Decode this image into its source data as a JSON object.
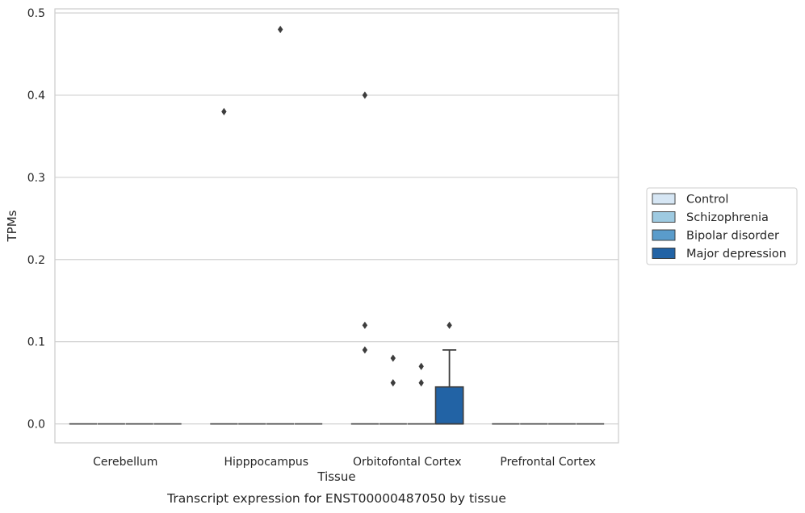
{
  "chart_data": {
    "type": "box",
    "title": "",
    "caption": "Transcript expression for ENST00000487050 by tissue",
    "xlabel": "Tissue",
    "ylabel": "TPMs",
    "ylim": [
      -0.023,
      0.505
    ],
    "yticks": [
      0.0,
      0.1,
      0.2,
      0.3,
      0.4,
      0.5
    ],
    "ytick_labels": [
      "0.0",
      "0.1",
      "0.2",
      "0.3",
      "0.4",
      "0.5"
    ],
    "grid": "horizontal",
    "legend_position": "right",
    "categories": [
      "Cerebellum",
      "Hipppocampus",
      "Orbitofontal Cortex",
      "Prefrontal Cortex"
    ],
    "series": [
      {
        "name": "Control",
        "color": "#d6e6f4",
        "boxes": [
          {
            "q1": 0,
            "median": 0,
            "q3": 0,
            "whisker_low": 0,
            "whisker_high": 0,
            "outliers": []
          },
          {
            "q1": 0,
            "median": 0,
            "q3": 0,
            "whisker_low": 0,
            "whisker_high": 0,
            "outliers": [
              0.38
            ]
          },
          {
            "q1": 0,
            "median": 0,
            "q3": 0,
            "whisker_low": 0,
            "whisker_high": 0,
            "outliers": [
              0.12,
              0.09,
              0.4
            ]
          },
          {
            "q1": 0,
            "median": 0,
            "q3": 0,
            "whisker_low": 0,
            "whisker_high": 0,
            "outliers": []
          }
        ]
      },
      {
        "name": "Schizophrenia",
        "color": "#9ecae1",
        "boxes": [
          {
            "q1": 0,
            "median": 0,
            "q3": 0,
            "whisker_low": 0,
            "whisker_high": 0,
            "outliers": []
          },
          {
            "q1": 0,
            "median": 0,
            "q3": 0,
            "whisker_low": 0,
            "whisker_high": 0,
            "outliers": []
          },
          {
            "q1": 0,
            "median": 0,
            "q3": 0,
            "whisker_low": 0,
            "whisker_high": 0,
            "outliers": [
              0.08,
              0.05
            ]
          },
          {
            "q1": 0,
            "median": 0,
            "q3": 0,
            "whisker_low": 0,
            "whisker_high": 0,
            "outliers": []
          }
        ]
      },
      {
        "name": "Bipolar disorder",
        "color": "#5a9ccb",
        "boxes": [
          {
            "q1": 0,
            "median": 0,
            "q3": 0,
            "whisker_low": 0,
            "whisker_high": 0,
            "outliers": []
          },
          {
            "q1": 0,
            "median": 0,
            "q3": 0,
            "whisker_low": 0,
            "whisker_high": 0,
            "outliers": [
              0.48
            ]
          },
          {
            "q1": 0,
            "median": 0,
            "q3": 0,
            "whisker_low": 0,
            "whisker_high": 0,
            "outliers": [
              0.07,
              0.05
            ]
          },
          {
            "q1": 0,
            "median": 0,
            "q3": 0,
            "whisker_low": 0,
            "whisker_high": 0,
            "outliers": []
          }
        ]
      },
      {
        "name": "Major depression",
        "color": "#2263a5",
        "boxes": [
          {
            "q1": 0,
            "median": 0,
            "q3": 0,
            "whisker_low": 0,
            "whisker_high": 0,
            "outliers": []
          },
          {
            "q1": 0,
            "median": 0,
            "q3": 0,
            "whisker_low": 0,
            "whisker_high": 0,
            "outliers": []
          },
          {
            "q1": 0,
            "median": 0,
            "q3": 0.045,
            "whisker_low": 0,
            "whisker_high": 0.09,
            "outliers": [
              0.12
            ]
          },
          {
            "q1": 0,
            "median": 0,
            "q3": 0,
            "whisker_low": 0,
            "whisker_high": 0,
            "outliers": []
          }
        ]
      }
    ],
    "colors": {
      "grid": "#cccccc",
      "spine": "#cccccc",
      "box_edge": "#3d3d3d",
      "outlier": "#3d3d3d",
      "text": "#262626"
    }
  }
}
